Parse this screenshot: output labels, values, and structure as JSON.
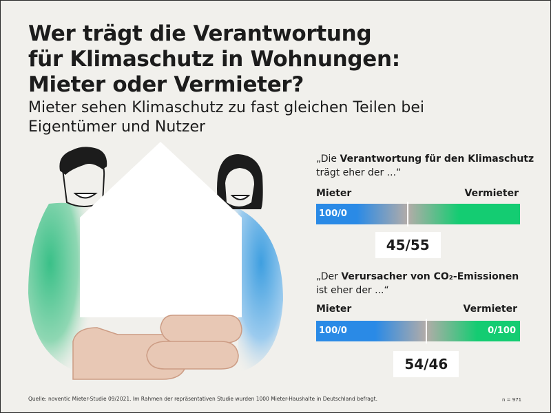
{
  "title_line1": "Wer trägt die Verantwortung",
  "title_line2": "für Klimaschutz in Wohnungen:",
  "title_line3": "Mieter oder Vermieter?",
  "subtitle": "Mieter sehen Klimaschutz zu fast gleichen Teilen bei Eigentümer und Nutzer",
  "source": "Quelle: noventic Mieter-Studie 09/2021. Im Rahmen der repräsentativen Studie wurden 1000 Mieter-Haushalte in Deutschland befragt.",
  "sample_size": "n = 971",
  "colors": {
    "mieter_blue": "#2a8ae6",
    "neutral_grey": "#b3aca8",
    "vermieter_green": "#14cc72",
    "background": "#f1f0ec"
  },
  "illustration": {
    "person_left": "smiling-man-icon",
    "person_right": "smiling-woman-icon",
    "house": "house-icon",
    "hands": "hands-icon"
  },
  "chart_data": [
    {
      "type": "bar",
      "title_pre": "„Die ",
      "title_bold": "Verantwortung für den Klimaschutz",
      "title_post": "trägt eher der ...“",
      "left_label": "Mieter",
      "right_label": "Vermieter",
      "scale_start_label": "100/0",
      "scale_end_label": "",
      "mieter_value": 45,
      "vermieter_value": 55,
      "value_label": "45/55"
    },
    {
      "type": "bar",
      "title_pre": "„Der ",
      "title_bold": "Verursacher von CO₂-Emissionen",
      "title_post": "ist eher der ...“",
      "left_label": "Mieter",
      "right_label": "Vermieter",
      "scale_start_label": "100/0",
      "scale_end_label": "0/100",
      "mieter_value": 54,
      "vermieter_value": 46,
      "value_label": "54/46"
    }
  ]
}
